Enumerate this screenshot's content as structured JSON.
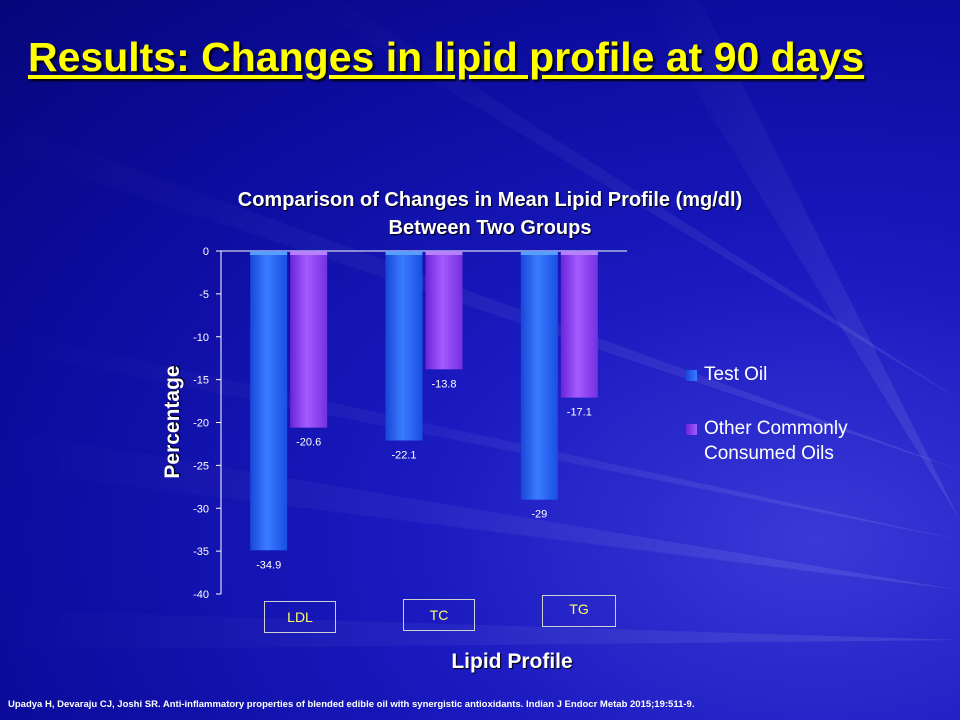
{
  "slide": {
    "title": "Results: Changes in lipid profile at 90 days",
    "citation": "Upadya H, Devaraju CJ, Joshi SR. Anti-inflammatory properties of blended edible oil with synergistic antioxidants. Indian J Endocr Metab 2015;19:511-9."
  },
  "colors": {
    "background": "#0c0c9e",
    "title": "#ffff00",
    "test_oil": "#2266ff",
    "other_oils": "#8a3ef0",
    "category_text": "#ffff66"
  },
  "chart_data": {
    "type": "bar",
    "title": "Comparison of Changes in Mean Lipid Profile (mg/dl) Between Two Groups",
    "title_lines": [
      "Comparison of Changes in Mean Lipid Profile (mg/dl)",
      "Between Two Groups"
    ],
    "xlabel": "Lipid Profile",
    "ylabel": "Percentage",
    "categories": [
      "LDL",
      "TC",
      "TG"
    ],
    "series": [
      {
        "name": "Test Oil",
        "values": [
          -34.9,
          -22.1,
          -29
        ],
        "labels": [
          "-34.9",
          "-22.1",
          "-29"
        ]
      },
      {
        "name": "Other Commonly Consumed Oils",
        "values": [
          -20.6,
          -13.8,
          -17.1
        ],
        "labels": [
          "-20.6",
          "-13.8",
          "-17.1"
        ]
      }
    ],
    "ylim": [
      -40,
      0
    ],
    "yticks": [
      0,
      -5,
      -10,
      -15,
      -20,
      -25,
      -30,
      -35,
      -40
    ],
    "grid": false,
    "legend": "right"
  },
  "legend": {
    "test_oil": "Test Oil",
    "other_line1": "Other Commonly",
    "other_line2": "Consumed Oils"
  }
}
